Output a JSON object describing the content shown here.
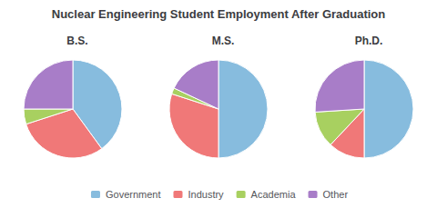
{
  "chart_data": {
    "type": "pie",
    "title": "Nuclear Engineering Student Employment After Graduation",
    "categories": [
      "Government",
      "Industry",
      "Academia",
      "Other"
    ],
    "colors": [
      "#87BCDE",
      "#F07878",
      "#A8D060",
      "#A87DC8"
    ],
    "series": [
      {
        "name": "B.S.",
        "values": [
          40,
          30,
          5,
          25
        ]
      },
      {
        "name": "M.S.",
        "values": [
          50,
          30,
          2,
          18
        ]
      },
      {
        "name": "Ph.D.",
        "values": [
          50,
          12,
          12,
          26
        ]
      }
    ],
    "legend": "bottom",
    "data_labels": false
  }
}
